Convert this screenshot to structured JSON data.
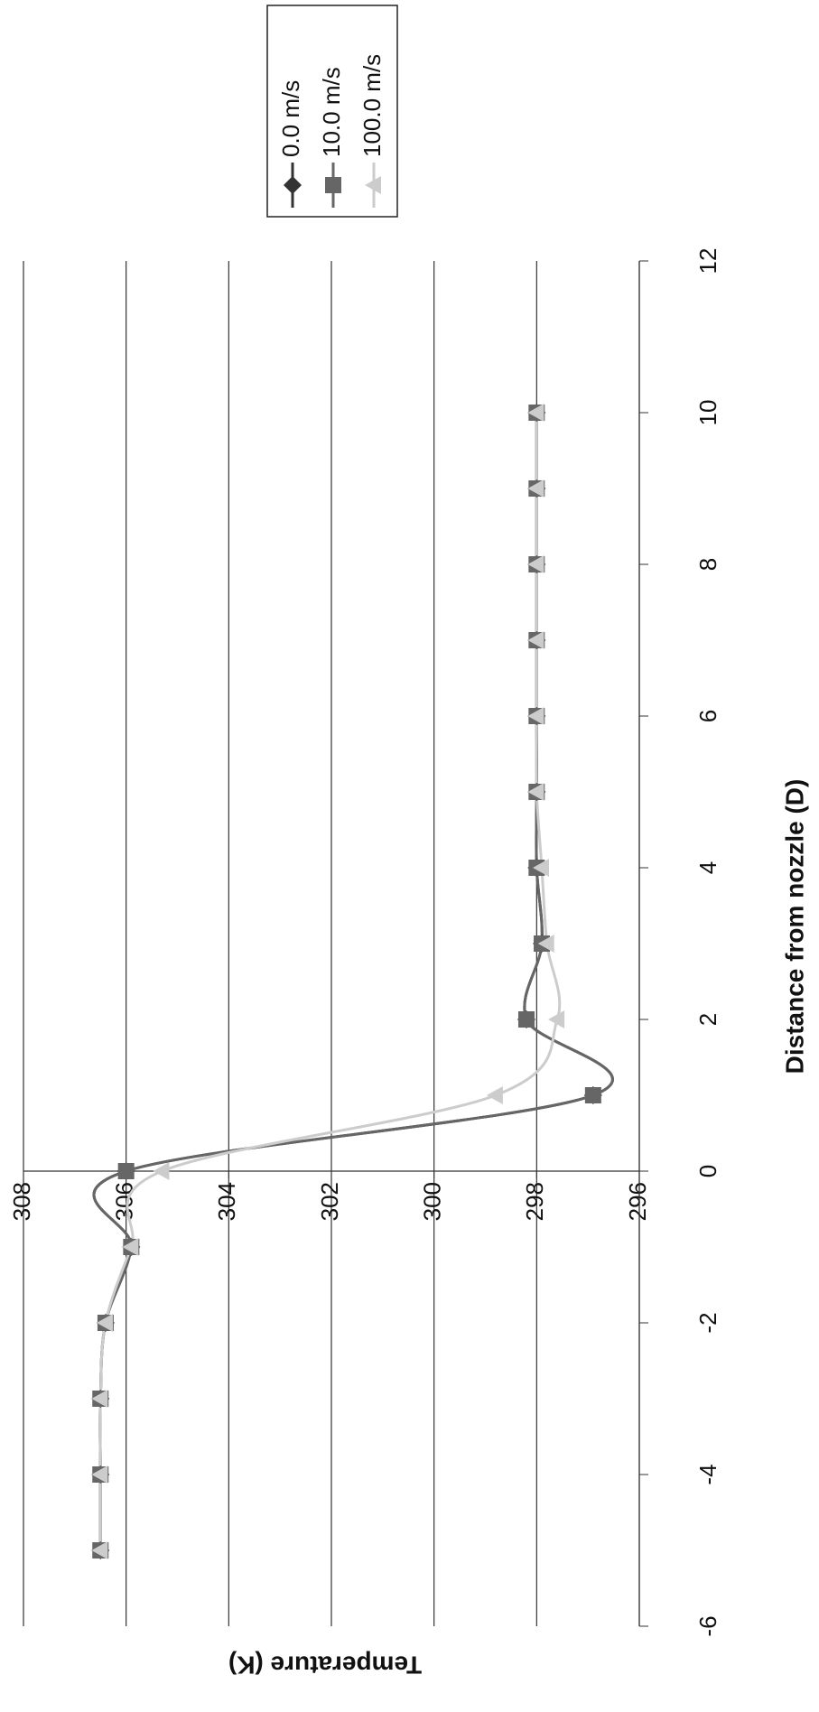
{
  "chart_data": {
    "type": "line",
    "x_label": "Distance from nozzle (D)",
    "y_label": "Temperature (K)",
    "x": [
      -5,
      -4,
      -3,
      -2,
      -1,
      0,
      1,
      2,
      3,
      4,
      5,
      6,
      7,
      8,
      9,
      10
    ],
    "series": [
      {
        "name": "0.0 m/s",
        "color": "#333333",
        "marker": "diamond",
        "values": [
          306.5,
          306.5,
          306.5,
          306.4,
          305.9,
          306.0,
          296.9,
          298.2,
          297.9,
          298.0,
          298.0,
          298.0,
          298.0,
          298.0,
          298.0,
          298.0
        ]
      },
      {
        "name": "10.0 m/s",
        "color": "#666666",
        "marker": "square",
        "values": [
          306.5,
          306.5,
          306.5,
          306.4,
          305.9,
          306.0,
          296.9,
          298.2,
          297.9,
          298.0,
          298.0,
          298.0,
          298.0,
          298.0,
          298.0,
          298.0
        ]
      },
      {
        "name": "100.0 m/s",
        "color": "#cccccc",
        "marker": "triangle",
        "values": [
          306.5,
          306.5,
          306.5,
          306.4,
          305.9,
          305.3,
          298.8,
          297.6,
          297.8,
          297.9,
          298.0,
          298.0,
          298.0,
          298.0,
          298.0,
          298.0
        ]
      }
    ],
    "xlim": [
      -6,
      12
    ],
    "xticks": [
      -6,
      -4,
      -2,
      0,
      2,
      4,
      6,
      8,
      10,
      12
    ],
    "ylim": [
      296,
      308
    ],
    "yticks": [
      296,
      298,
      300,
      302,
      304,
      306,
      308
    ],
    "grid": true,
    "legend": "right",
    "smooth": true
  }
}
